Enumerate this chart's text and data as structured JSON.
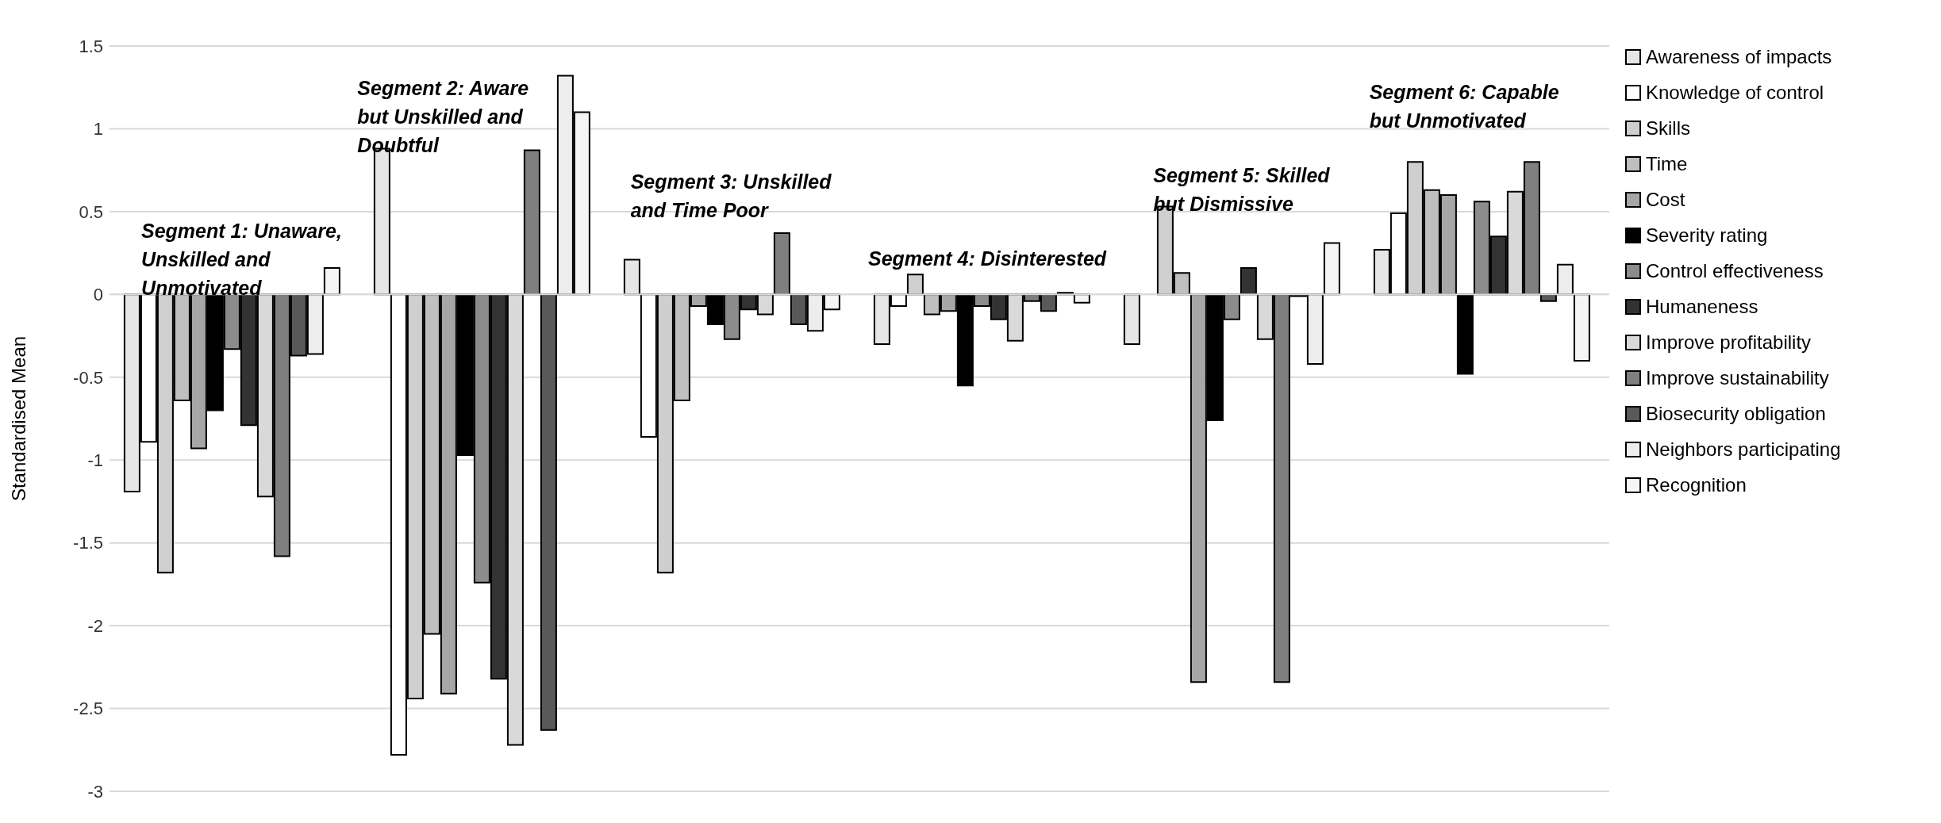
{
  "chart_data": {
    "type": "bar",
    "ylabel": "Standardised Mean",
    "categories": [
      null,
      null,
      null,
      null,
      null,
      null
    ],
    "series": [
      {
        "name": "Awareness of impacts",
        "color": "#e6e6e6",
        "values": [
          -1.19,
          0.88,
          0.21,
          -0.3,
          -0.3,
          0.27
        ]
      },
      {
        "name": "Knowledge of control",
        "color": "#ffffff",
        "values": [
          -0.89,
          -2.78,
          -0.86,
          -0.07,
          0,
          0.49
        ]
      },
      {
        "name": "Skills",
        "color": "#cfcfcf",
        "values": [
          -1.68,
          -2.44,
          -1.68,
          0.12,
          0.53,
          0.8
        ]
      },
      {
        "name": "Time",
        "color": "#bfbfbf",
        "values": [
          -0.64,
          -2.05,
          -0.64,
          -0.12,
          0.13,
          0.63
        ]
      },
      {
        "name": "Cost",
        "color": "#a6a6a6",
        "values": [
          -0.93,
          -2.41,
          -0.07,
          -0.1,
          -2.34,
          0.6
        ]
      },
      {
        "name": "Severity rating",
        "color": "#000000",
        "values": [
          -0.7,
          -0.97,
          -0.18,
          -0.55,
          -0.76,
          -0.48
        ]
      },
      {
        "name": "Control effectiveness",
        "color": "#8c8c8c",
        "values": [
          -0.33,
          -1.74,
          -0.27,
          -0.07,
          -0.15,
          0.56
        ]
      },
      {
        "name": "Humaneness",
        "color": "#333333",
        "values": [
          -0.79,
          -2.32,
          -0.09,
          -0.15,
          0.16,
          0.35
        ]
      },
      {
        "name": "Improve profitability",
        "color": "#d9d9d9",
        "values": [
          -1.22,
          -2.72,
          -0.12,
          -0.28,
          -0.27,
          0.62
        ]
      },
      {
        "name": "Improve sustainability",
        "color": "#7f7f7f",
        "values": [
          -1.58,
          0.87,
          0.37,
          -0.04,
          -2.34,
          0.8
        ]
      },
      {
        "name": "Biosecurity obligation",
        "color": "#595959",
        "values": [
          -0.37,
          -2.63,
          -0.18,
          -0.1,
          -0.01,
          -0.04
        ]
      },
      {
        "name": "Neighbors participating",
        "color": "#ededed",
        "values": [
          -0.36,
          1.32,
          -0.22,
          0.01,
          -0.42,
          0.18
        ]
      },
      {
        "name": "Recognition",
        "color": "#f5f5f5",
        "values": [
          0.16,
          1.1,
          -0.09,
          -0.05,
          0.31,
          -0.4
        ]
      }
    ],
    "ylim": [
      -3,
      1.5
    ],
    "yticks": [
      -3,
      -2.5,
      -2,
      -1.5,
      -1,
      -0.5,
      0,
      0.5,
      1,
      1.5
    ],
    "grid": "y",
    "legend": "right",
    "tick_labels": "y",
    "annotations": [
      "Segment 1: Unaware, Unskilled and Unmotivated",
      "Segment 2: Aware but Unskilled and Doubtful",
      "Segment 3: Unskilled and Time Poor",
      "Segment 4: Disinterested",
      "Segment 5: Skilled but Dismissive",
      "Segment 6: Capable but Unmotivated"
    ]
  }
}
